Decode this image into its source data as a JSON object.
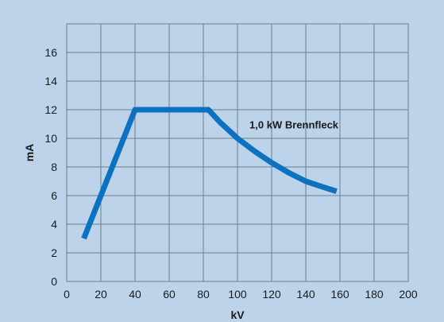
{
  "colors": {
    "background": "#bcd3ea",
    "grid": "#6f7f8f",
    "series": "#0c72bf"
  },
  "chart_data": {
    "type": "line",
    "title": "",
    "xlabel": "kV",
    "ylabel": "mA",
    "xlim": [
      0,
      200
    ],
    "ylim": [
      0,
      18
    ],
    "xticks": [
      0,
      20,
      40,
      60,
      80,
      100,
      120,
      140,
      160,
      180,
      200
    ],
    "yticks": [
      0,
      2,
      4,
      6,
      8,
      10,
      12,
      14,
      16
    ],
    "grid": true,
    "series": [
      {
        "name": "",
        "x": [
          10,
          40,
          83,
          90,
          100,
          110,
          120,
          130,
          140,
          150,
          158
        ],
        "y": [
          3.0,
          12.0,
          12.0,
          11.1,
          10.0,
          9.1,
          8.3,
          7.6,
          7.0,
          6.6,
          6.3
        ]
      }
    ],
    "annotations": [
      {
        "text": "1,0 kW Brennfleck",
        "x": 107,
        "y": 10.7
      }
    ]
  }
}
